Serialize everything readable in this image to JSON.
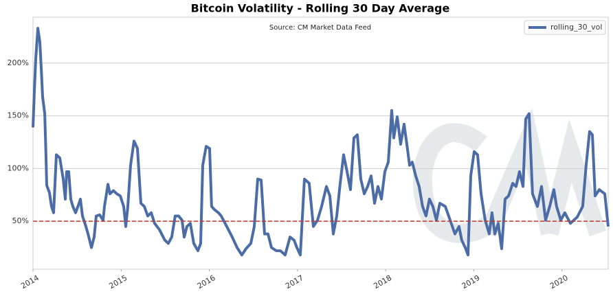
{
  "chart_data": {
    "type": "line",
    "title": "Bitcoin Volatility - Rolling 30 Day Average",
    "subtitle": "Source: CM Market Data Feed",
    "x": [
      2014.0,
      2014.016,
      2014.031,
      2014.055,
      2014.078,
      2014.094,
      2014.109,
      2014.133,
      2014.148,
      2014.156,
      2014.187,
      2014.21,
      2014.234,
      2014.265,
      2014.304,
      2014.343,
      2014.366,
      2014.382,
      2014.405,
      2014.429,
      2014.452,
      2014.483,
      2014.522,
      2014.538,
      2014.561,
      2014.6,
      2014.624,
      2014.663,
      2014.694,
      2014.717,
      2014.756,
      2014.795,
      2014.811,
      2014.85,
      2014.873,
      2014.912,
      2014.951,
      2014.99,
      2015.029,
      2015.052,
      2015.076,
      2015.107,
      2015.146,
      2015.185,
      2015.224,
      2015.263,
      2015.302,
      2015.341,
      2015.38,
      2015.434,
      2015.496,
      2015.535,
      2015.574,
      2015.613,
      2015.652,
      2015.691,
      2015.715,
      2015.746,
      2015.785,
      2015.823,
      2015.871,
      2015.902,
      2015.925,
      2015.964,
      2016.003,
      2016.026,
      2016.058,
      2016.104,
      2016.135,
      2016.198,
      2016.26,
      2016.315,
      2016.369,
      2016.416,
      2016.471,
      2016.51,
      2016.549,
      2016.588,
      2016.627,
      2016.666,
      2016.705,
      2016.759,
      2016.806,
      2016.86,
      2016.915,
      2016.962,
      2016.993,
      2017.032,
      2017.079,
      2017.133,
      2017.18,
      2017.227,
      2017.274,
      2017.328,
      2017.367,
      2017.406,
      2017.445,
      2017.484,
      2017.523,
      2017.562,
      2017.601,
      2017.64,
      2017.679,
      2017.718,
      2017.757,
      2017.796,
      2017.835,
      2017.874,
      2017.913,
      2017.952,
      2017.991,
      2018.03,
      2018.069,
      2018.092,
      2018.131,
      2018.17,
      2018.209,
      2018.24,
      2018.271,
      2018.302,
      2018.341,
      2018.38,
      2018.419,
      2018.458,
      2018.497,
      2018.536,
      2018.575,
      2018.614,
      2018.677,
      2018.731,
      2018.786,
      2018.832,
      2018.863,
      2018.903,
      2018.934,
      2018.965,
      2019.004,
      2019.043,
      2019.082,
      2019.129,
      2019.175,
      2019.206,
      2019.238,
      2019.277,
      2019.316,
      2019.355,
      2019.394,
      2019.441,
      2019.479,
      2019.518,
      2019.558,
      2019.589,
      2019.627,
      2019.666,
      2019.721,
      2019.768,
      2019.814,
      2019.861,
      2019.908,
      2019.939,
      2019.986,
      2020.032,
      2020.095,
      2020.173,
      2020.235,
      2020.274,
      2020.313,
      2020.345,
      2020.376,
      2020.423,
      2020.485,
      2020.524
    ],
    "series": [
      {
        "name": "rolling_30_vol",
        "color": "#4c6ca6",
        "values": [
          139,
          175,
          204,
          233,
          220,
          194,
          168,
          152,
          110,
          84,
          77,
          64,
          58,
          113,
          110,
          90,
          71,
          97,
          97,
          71,
          64,
          58,
          67,
          71,
          55,
          45,
          38,
          25,
          35,
          55,
          56,
          51,
          64,
          85,
          76,
          79,
          76,
          74,
          64,
          45,
          64,
          103,
          126,
          119,
          67,
          64,
          55,
          58,
          48,
          42,
          32,
          29,
          35,
          55,
          55,
          51,
          35,
          45,
          48,
          29,
          22,
          29,
          103,
          121,
          119,
          64,
          61,
          58,
          55,
          45,
          35,
          25,
          18,
          24,
          29,
          45,
          90,
          89,
          38,
          38,
          25,
          22,
          22,
          18,
          35,
          32,
          25,
          18,
          90,
          86,
          45,
          51,
          64,
          83,
          74,
          38,
          55,
          86,
          113,
          97,
          80,
          129,
          132,
          90,
          76,
          83,
          93,
          67,
          83,
          71,
          97,
          106,
          155,
          129,
          149,
          123,
          142,
          123,
          103,
          106,
          93,
          83,
          64,
          55,
          71,
          64,
          51,
          67,
          64,
          51,
          38,
          45,
          32,
          25,
          18,
          93,
          116,
          113,
          76,
          51,
          38,
          58,
          38,
          48,
          24,
          71,
          74,
          86,
          83,
          97,
          83,
          147,
          152,
          76,
          64,
          83,
          51,
          64,
          80,
          64,
          51,
          58,
          48,
          54,
          64,
          103,
          135,
          132,
          74,
          80,
          76,
          45
        ]
      }
    ],
    "xlim": [
      2014,
      2020.524
    ],
    "xticks": [
      2014,
      2015,
      2016,
      2017,
      2018,
      2019,
      2020
    ],
    "ylim": [
      4.5,
      243.5
    ],
    "yticks": [
      {
        "value": 50,
        "label": "50%"
      },
      {
        "value": 100,
        "label": "100%"
      },
      {
        "value": 150,
        "label": "150%"
      },
      {
        "value": 200,
        "label": "200%"
      }
    ],
    "hline": {
      "value": 50,
      "color": "#c0392b"
    },
    "grid": true,
    "legend": "upper right"
  }
}
